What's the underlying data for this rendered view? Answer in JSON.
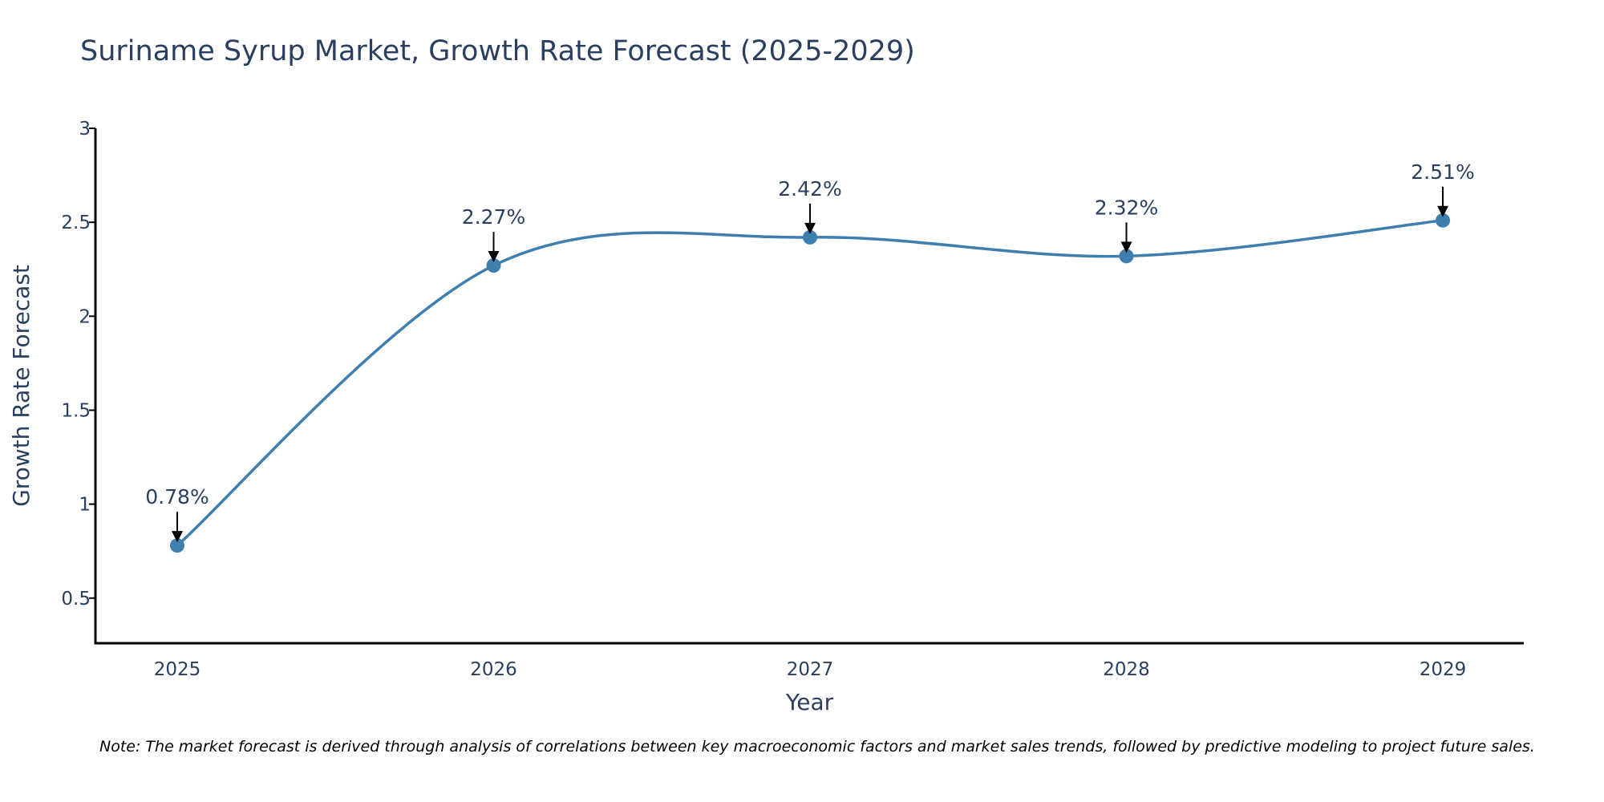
{
  "chart_data": {
    "type": "line",
    "title": "Suriname Syrup Market, Growth Rate Forecast (2025-2029)",
    "xlabel": "Year",
    "ylabel": "Growth Rate Forecast",
    "categories": [
      "2025",
      "2026",
      "2027",
      "2028",
      "2029"
    ],
    "series": [
      {
        "name": "Growth Rate Forecast",
        "values": [
          0.78,
          2.27,
          2.42,
          2.32,
          2.51
        ],
        "labels": [
          "0.78%",
          "2.27%",
          "2.42%",
          "2.32%",
          "2.51%"
        ]
      }
    ],
    "ylim": [
      0.26,
      3.0
    ],
    "yticks": [
      0.5,
      1,
      1.5,
      2,
      2.5,
      3
    ],
    "ytick_labels": [
      "0.5",
      "1",
      "1.5",
      "2",
      "2.5",
      "3"
    ],
    "grid": false,
    "line_color": "#3f7fb0",
    "note": "Note: The market forecast is derived through analysis of correlations between key macroeconomic factors and market sales trends, followed by predictive modeling to project future sales."
  }
}
